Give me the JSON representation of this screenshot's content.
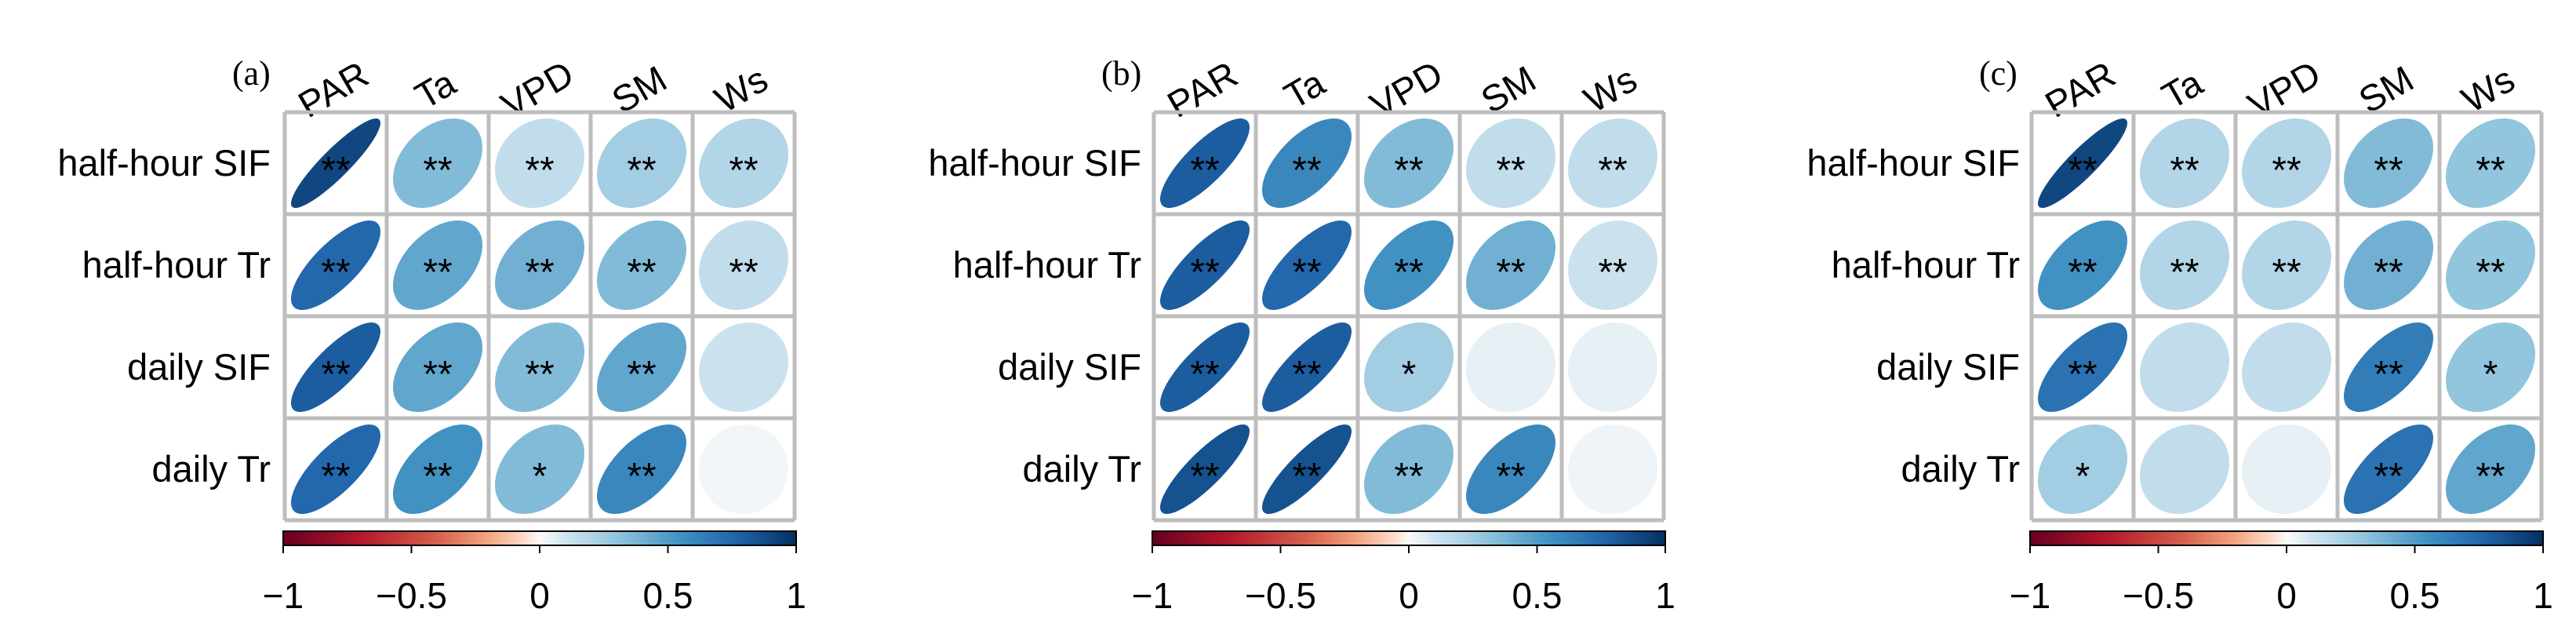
{
  "chart_data": [
    {
      "type": "correlation-matrix",
      "panel_label": "(a)",
      "columns": [
        "PAR",
        "Ta",
        "VPD",
        "SM",
        "Ws"
      ],
      "rows": [
        "half-hour SIF",
        "half-hour Tr",
        "daily SIF",
        "daily Tr"
      ],
      "values": [
        [
          0.9,
          0.35,
          0.15,
          0.25,
          0.2
        ],
        [
          0.75,
          0.45,
          0.4,
          0.35,
          0.15
        ],
        [
          0.8,
          0.45,
          0.35,
          0.45,
          0.12
        ],
        [
          0.75,
          0.55,
          0.35,
          0.6,
          0.02
        ]
      ],
      "significance": [
        [
          "**",
          "**",
          "**",
          "**",
          "**"
        ],
        [
          "**",
          "**",
          "**",
          "**",
          "**"
        ],
        [
          "**",
          "**",
          "**",
          "**",
          ""
        ],
        [
          "**",
          "**",
          "*",
          "**",
          ""
        ]
      ],
      "colorbar": {
        "min": -1,
        "max": 1,
        "tick_labels": [
          "−1",
          "−0.5",
          "0",
          "0.5",
          "1"
        ],
        "ticks": [
          -1,
          -0.5,
          0,
          0.5,
          1
        ]
      }
    },
    {
      "type": "correlation-matrix",
      "panel_label": "(b)",
      "columns": [
        "PAR",
        "Ta",
        "VPD",
        "SM",
        "Ws"
      ],
      "rows": [
        "half-hour SIF",
        "half-hour Tr",
        "daily SIF",
        "daily Tr"
      ],
      "values": [
        [
          0.8,
          0.6,
          0.35,
          0.15,
          0.15
        ],
        [
          0.8,
          0.75,
          0.55,
          0.4,
          0.12
        ],
        [
          0.8,
          0.8,
          0.25,
          0.05,
          0.05
        ],
        [
          0.85,
          0.85,
          0.35,
          0.6,
          0.03
        ]
      ],
      "significance": [
        [
          "**",
          "**",
          "**",
          "**",
          "**"
        ],
        [
          "**",
          "**",
          "**",
          "**",
          "**"
        ],
        [
          "**",
          "**",
          "*",
          "",
          ""
        ],
        [
          "**",
          "**",
          "**",
          "**",
          ""
        ]
      ],
      "colorbar": {
        "min": -1,
        "max": 1,
        "tick_labels": [
          "−1",
          "−0.5",
          "0",
          "0.5",
          "1"
        ],
        "ticks": [
          -1,
          -0.5,
          0,
          0.5,
          1
        ]
      }
    },
    {
      "type": "correlation-matrix",
      "panel_label": "(c)",
      "columns": [
        "PAR",
        "Ta",
        "VPD",
        "SM",
        "Ws"
      ],
      "rows": [
        "half-hour SIF",
        "half-hour Tr",
        "daily SIF",
        "daily Tr"
      ],
      "values": [
        [
          0.9,
          0.2,
          0.2,
          0.35,
          0.3
        ],
        [
          0.55,
          0.2,
          0.2,
          0.4,
          0.3
        ],
        [
          0.7,
          0.15,
          0.15,
          0.65,
          0.3
        ],
        [
          0.25,
          0.15,
          0.05,
          0.7,
          0.45
        ]
      ],
      "significance": [
        [
          "**",
          "**",
          "**",
          "**",
          "**"
        ],
        [
          "**",
          "**",
          "**",
          "**",
          "**"
        ],
        [
          "**",
          "",
          "",
          "**",
          "*"
        ],
        [
          "*",
          "",
          "",
          "**",
          "**"
        ]
      ],
      "colorbar": {
        "min": -1,
        "max": 1,
        "tick_labels": [
          "−1",
          "−0.5",
          "0",
          "0.5",
          "1"
        ],
        "ticks": [
          -1,
          -0.5,
          0,
          0.5,
          1
        ]
      }
    }
  ]
}
